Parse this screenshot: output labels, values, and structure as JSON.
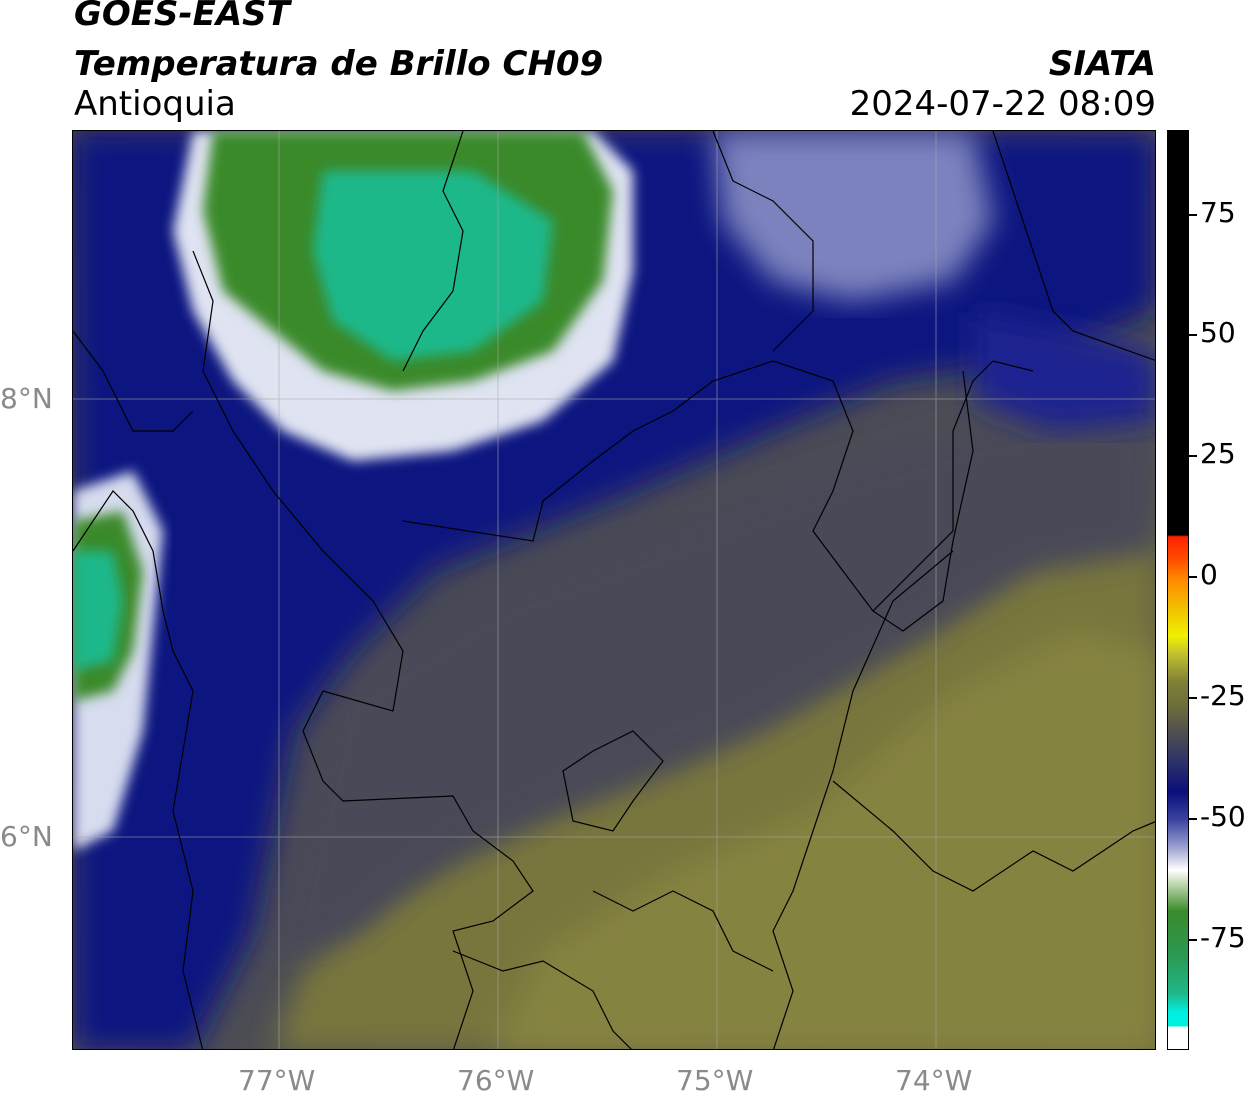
{
  "header": {
    "satellite": "GOES-EAST",
    "product": "Temperatura de Brillo CH09",
    "region": "Antioquia",
    "organization": "SIATA",
    "timestamp": "2024-07-22 08:09"
  },
  "map": {
    "lat_labels": [
      "8°N",
      "6°N"
    ],
    "lon_labels": [
      "77°W",
      "76°W",
      "75°W",
      "74°W"
    ],
    "extent": {
      "lon_min": -77.95,
      "lon_max": -73.05,
      "lat_min": 5.05,
      "lat_max": 9.25
    }
  },
  "colorbar": {
    "tick_labels": [
      "75",
      "50",
      "25",
      "0",
      "-25",
      "-50",
      "-75"
    ],
    "range": [
      -95,
      90
    ],
    "colors": {
      "warm_top": "#000000",
      "red": "#ff2000",
      "orange": "#ff8c00",
      "yellow": "#f0f000",
      "olive": "#808036",
      "grey": "#4a4a55",
      "navy": "#0a0f7a",
      "white": "#ffffff",
      "green": "#3a8a2a",
      "teal": "#1fb88a",
      "cyan": "#00f0e0"
    }
  }
}
